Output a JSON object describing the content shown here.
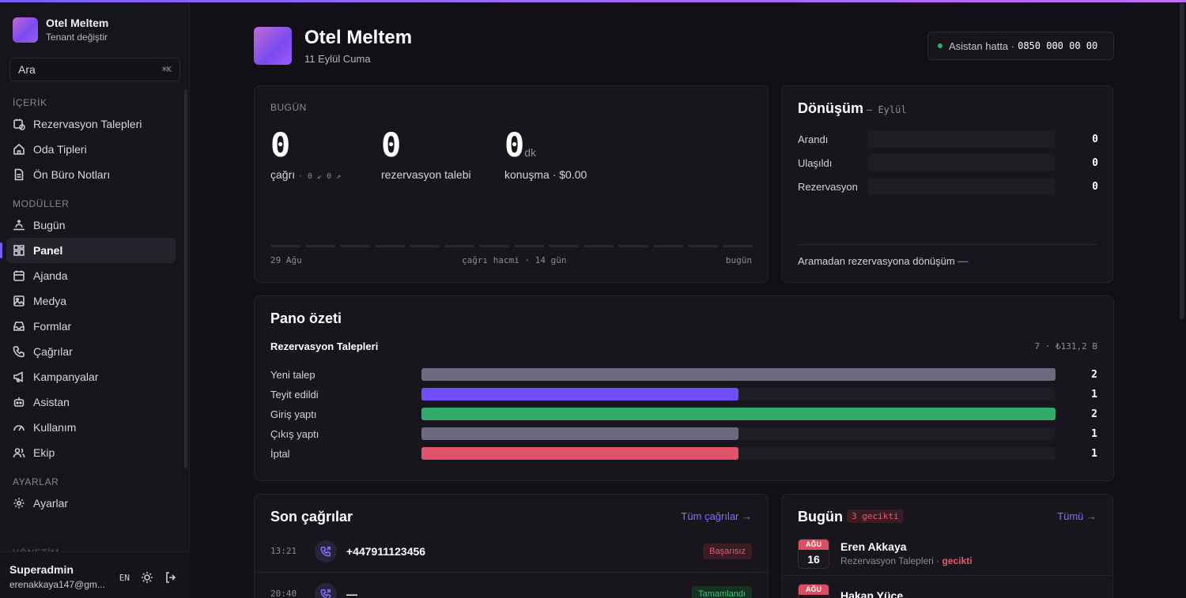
{
  "tenant": {
    "name": "Otel Meltem",
    "switch_label": "Tenant değiştir"
  },
  "search": {
    "label": "Ara",
    "shortcut": "⌘K"
  },
  "nav": {
    "sections": [
      {
        "title": "İÇERİK",
        "items": [
          {
            "label": "Rezervasyon Talepleri",
            "icon": "calendar-clock-icon"
          },
          {
            "label": "Oda Tipleri",
            "icon": "home-icon"
          },
          {
            "label": "Ön Büro Notları",
            "icon": "document-icon"
          }
        ]
      },
      {
        "title": "MODÜLLER",
        "items": [
          {
            "label": "Bugün",
            "icon": "sunrise-icon"
          },
          {
            "label": "Panel",
            "icon": "dashboard-icon",
            "active": true
          },
          {
            "label": "Ajanda",
            "icon": "calendar-icon"
          },
          {
            "label": "Medya",
            "icon": "image-icon"
          },
          {
            "label": "Formlar",
            "icon": "inbox-icon"
          },
          {
            "label": "Çağrılar",
            "icon": "phone-icon"
          },
          {
            "label": "Kampanyalar",
            "icon": "megaphone-icon"
          },
          {
            "label": "Asistan",
            "icon": "bot-icon"
          },
          {
            "label": "Kullanım",
            "icon": "gauge-icon"
          },
          {
            "label": "Ekip",
            "icon": "users-icon"
          }
        ]
      },
      {
        "title": "AYARLAR",
        "items": [
          {
            "label": "Ayarlar",
            "icon": "gear-icon"
          }
        ]
      }
    ],
    "cut_section": "YÖNETİM"
  },
  "user": {
    "name": "Superadmin",
    "email": "erenakkaya147@gm...",
    "lang": "EN"
  },
  "header": {
    "title": "Otel Meltem",
    "date": "11 Eylül Cuma"
  },
  "hotline": {
    "label": "Asistan hatta ·",
    "number": "0850 000 00 00"
  },
  "today": {
    "kicker": "BUGÜN",
    "calls": {
      "value": "0",
      "label": "çağrı",
      "extra": "· 0 ↙ 0 ↗"
    },
    "requests": {
      "value": "0",
      "label": "rezervasyon talebi"
    },
    "talk": {
      "value": "0",
      "unit": "dk",
      "label": "konuşma · $0.00"
    },
    "axis_start": "29 Ağu",
    "axis_mid": "çağrı hacmi · 14 gün",
    "axis_end": "bugün"
  },
  "conversion": {
    "title": "Dönüşüm",
    "period": "– Eylül",
    "rows": [
      {
        "label": "Arandı",
        "value": "0"
      },
      {
        "label": "Ulaşıldı",
        "value": "0"
      },
      {
        "label": "Rezervasyon",
        "value": "0"
      }
    ],
    "footer": "Aramadan rezervasyona dönüşüm",
    "footer_value": "—"
  },
  "pano": {
    "title": "Pano özeti",
    "subtitle": "Rezervasyon Talepleri",
    "total": "7 · ₺131,2 B",
    "rows": [
      {
        "label": "Yeni talep",
        "value": "2",
        "fraction": 1.0,
        "color": "#6e6880"
      },
      {
        "label": "Teyit edildi",
        "value": "1",
        "fraction": 0.5,
        "color": "#6d4dff"
      },
      {
        "label": "Giriş yaptı",
        "value": "2",
        "fraction": 1.0,
        "color": "#2faa6a"
      },
      {
        "label": "Çıkış yaptı",
        "value": "1",
        "fraction": 0.5,
        "color": "#6e6880"
      },
      {
        "label": "İptal",
        "value": "1",
        "fraction": 0.5,
        "color": "#e0546a"
      }
    ]
  },
  "calls": {
    "title": "Son çağrılar",
    "link": "Tüm çağrılar →",
    "rows": [
      {
        "time": "13:21",
        "number": "+447911123456",
        "status": "Başarısız",
        "status_color": "red"
      },
      {
        "time": "20:40",
        "number": "—",
        "status": "Tamamlandı",
        "status_color": "green"
      }
    ]
  },
  "bugun": {
    "title": "Bugün",
    "late": "3 gecikti",
    "link": "Tümü →",
    "rows": [
      {
        "month": "AĞU",
        "day": "16",
        "name": "Eren Akkaya",
        "sub": "Rezervasyon Talepleri ·",
        "late": "gecikti"
      },
      {
        "month": "AĞU",
        "day": "",
        "name": "Hakan Yüce",
        "sub": "",
        "late": ""
      }
    ]
  }
}
